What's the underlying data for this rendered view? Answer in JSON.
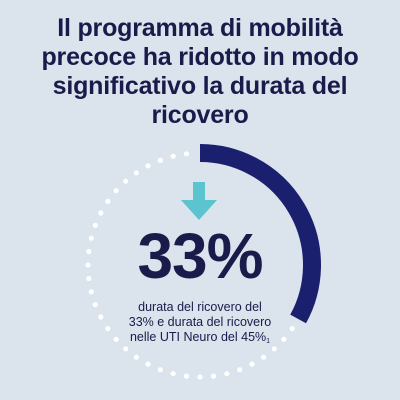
{
  "title_lines": [
    "Il programma di mobilità",
    "precoce ha ridotto in modo",
    "significativo la durata del",
    "ricovero"
  ],
  "stat": {
    "value": "33%",
    "caption_lines": [
      "durata del ricovero del",
      "33% e durata del ricovero",
      "nelle UTI Neuro del 45%"
    ],
    "footnote": "1"
  },
  "ring": {
    "arc_fraction": 0.33,
    "arc_color": "#1a1f6e",
    "dot_color": "#ffffff"
  },
  "icon": {
    "name": "down-arrow-icon",
    "color": "#5bc4cf"
  },
  "colors": {
    "background": "#dbe3ec",
    "text": "#1b1b4b"
  }
}
